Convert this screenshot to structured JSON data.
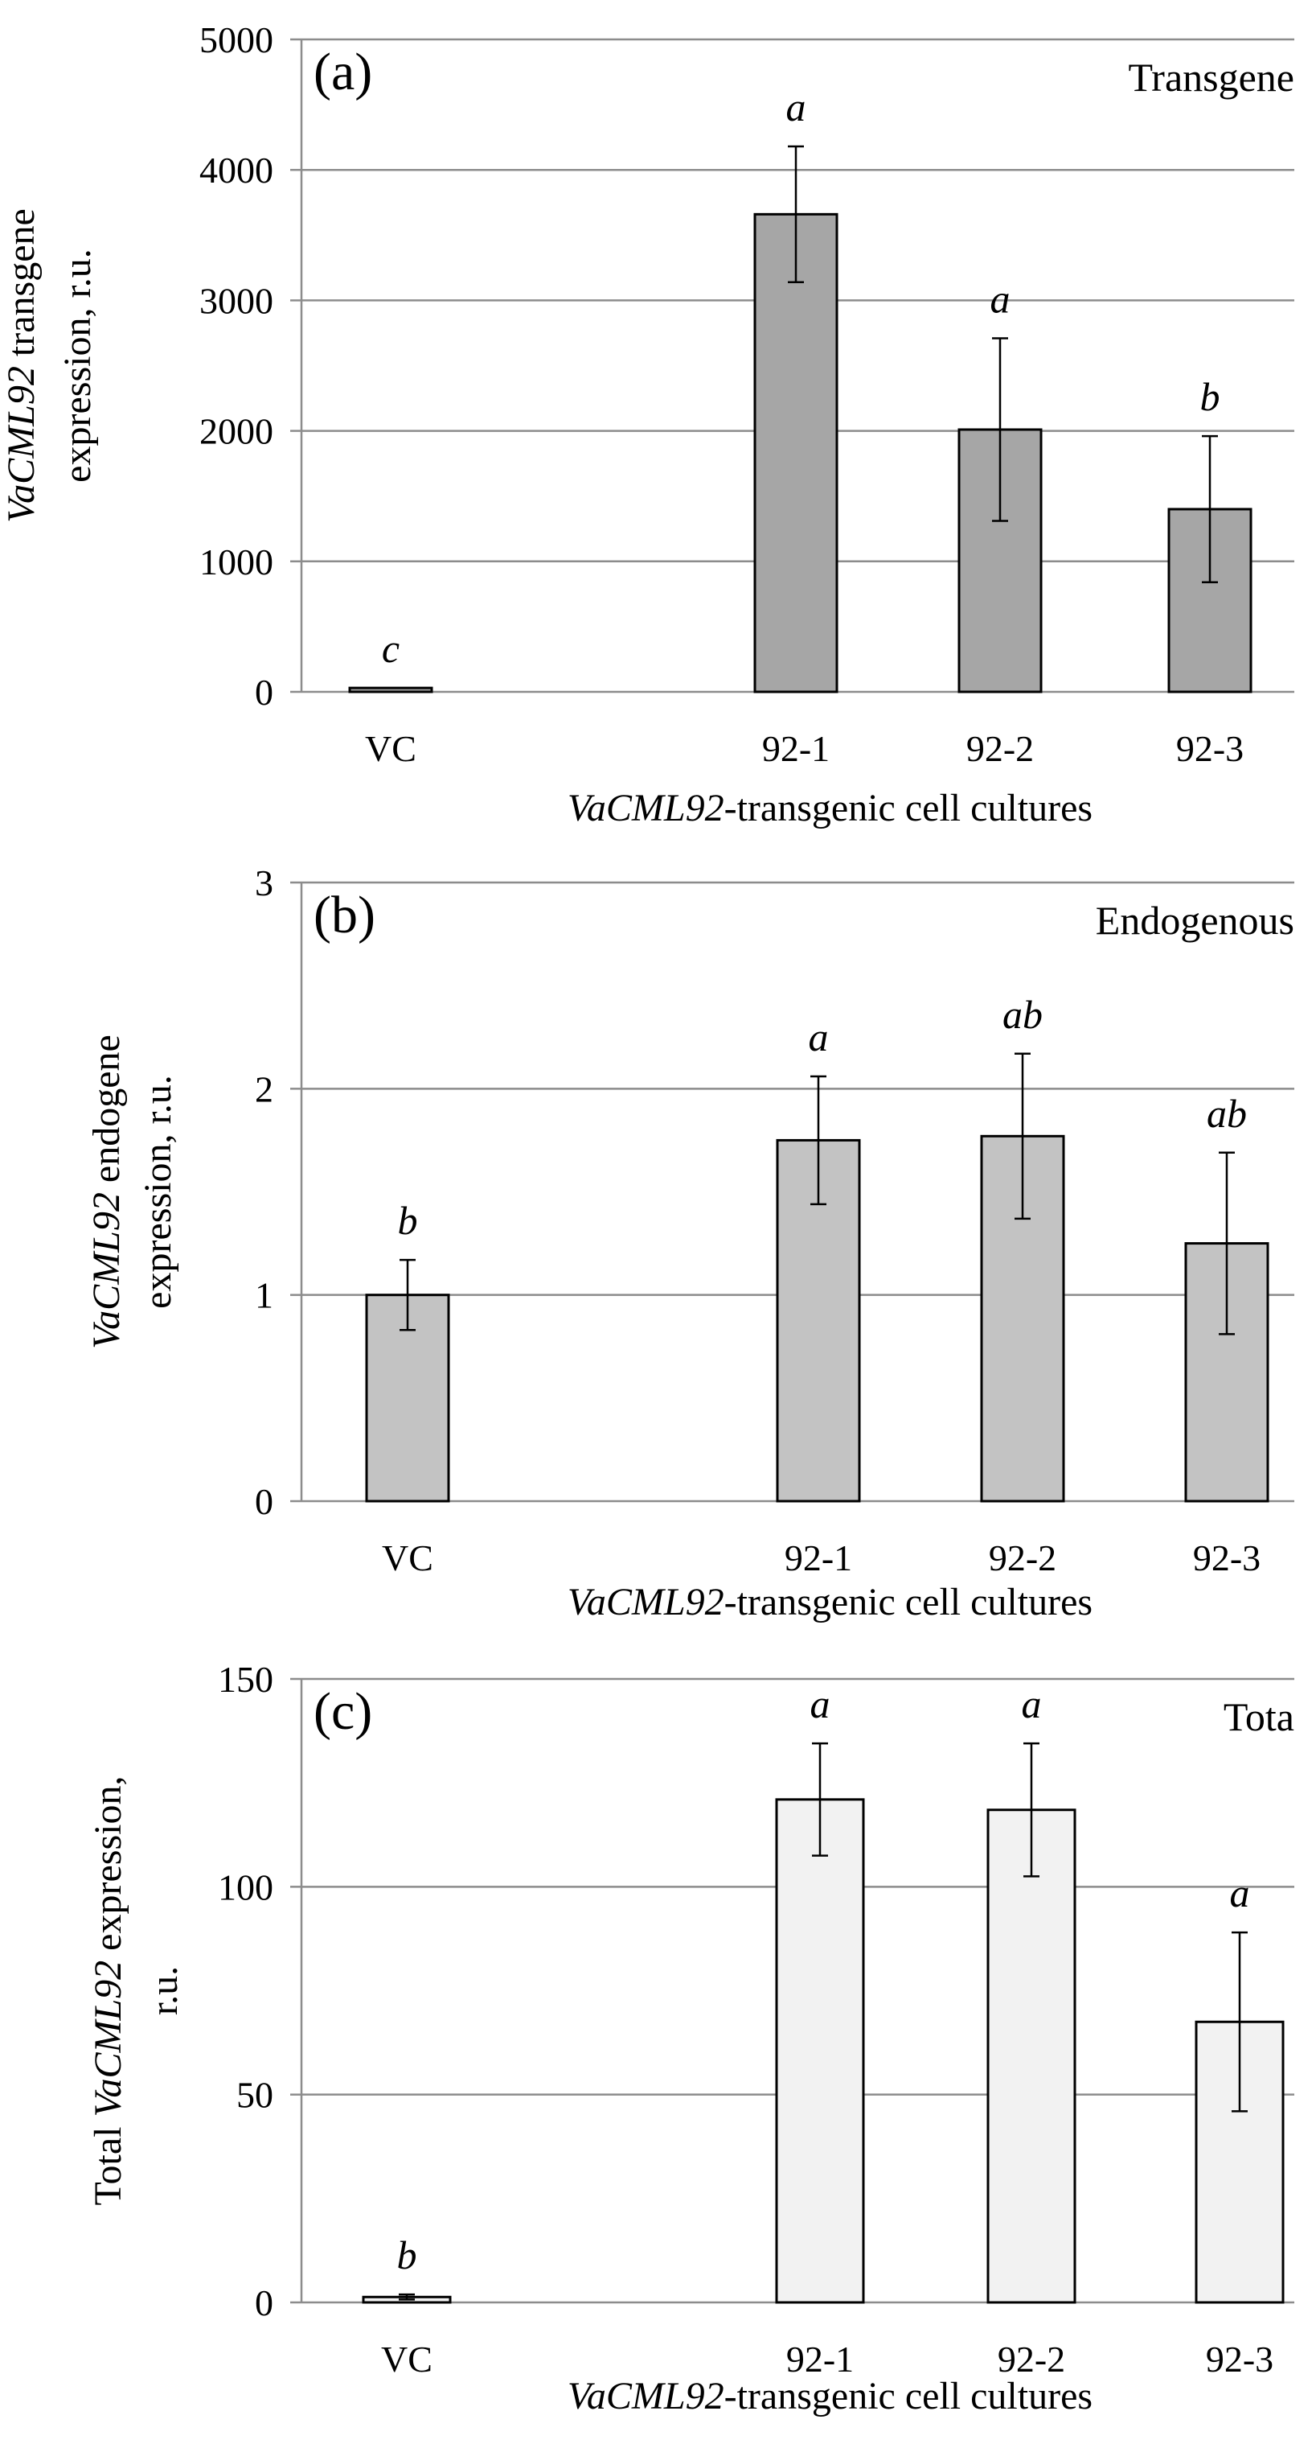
{
  "chart_data": [
    {
      "type": "bar",
      "panel_label": "(a)",
      "corner_label": "Transgene",
      "categories": [
        "VC",
        "92-1",
        "92-2",
        "92-3"
      ],
      "values": [
        30,
        3660,
        2010,
        1400
      ],
      "errors": [
        0,
        520,
        700,
        560
      ],
      "significance": [
        "c",
        "a",
        "a",
        "b"
      ],
      "yticks": [
        0,
        1000,
        2000,
        3000,
        4000,
        5000
      ],
      "ylim": [
        0,
        5000
      ],
      "ylabel": {
        "italic": "VaCML92",
        "line1_rest": " transgene",
        "line2": "expression, r.u."
      },
      "xlabel": {
        "italic": "VaCML92",
        "rest": "-transgenic cell  cultures"
      },
      "bar_color": "#a6a6a6"
    },
    {
      "type": "bar",
      "panel_label": "(b)",
      "corner_label": "Endogenous",
      "categories": [
        "VC",
        "92-1",
        "92-2",
        "92-3"
      ],
      "values": [
        1.0,
        1.75,
        1.77,
        1.25
      ],
      "errors": [
        0.17,
        0.31,
        0.4,
        0.44
      ],
      "significance": [
        "b",
        "a",
        "ab",
        "ab"
      ],
      "yticks": [
        0,
        1,
        2,
        3
      ],
      "ylim": [
        0,
        3
      ],
      "ylabel": {
        "italic": "VaCML92",
        "line1_rest": " endogene",
        "line2": "expression, r.u."
      },
      "xlabel": {
        "italic": "VaCML92",
        "rest": "-transgenic cell  cultures"
      },
      "bar_color": "#c3c3c3"
    },
    {
      "type": "bar",
      "panel_label": "(c)",
      "corner_label": "Tota",
      "categories": [
        "VC",
        "92-1",
        "92-2",
        "92-3"
      ],
      "values": [
        1.3,
        121,
        118.5,
        67.5
      ],
      "errors": [
        0.6,
        13.5,
        16,
        21.5
      ],
      "significance": [
        "b",
        "a",
        "a",
        "a"
      ],
      "yticks": [
        0,
        50,
        100,
        150
      ],
      "ylim": [
        0,
        150
      ],
      "ylabel": {
        "prefix": "Total ",
        "italic": "VaCML92",
        "line1_rest": " expression,",
        "line2": "r.u."
      },
      "xlabel": {
        "italic": "VaCML92",
        "rest": "-transgenic cell  cultures"
      },
      "bar_color": "#f2f2f2"
    }
  ]
}
